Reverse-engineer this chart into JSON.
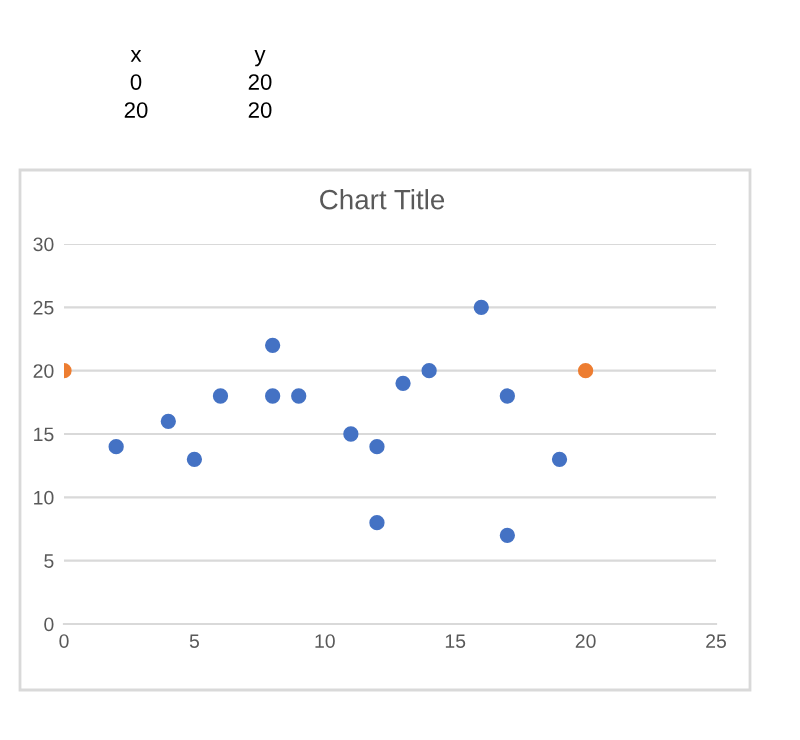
{
  "chart_data": {
    "type": "scatter",
    "title": "Chart Title",
    "annotations": [
      "x",
      "y",
      "0",
      "20",
      "20",
      "20"
    ],
    "series": [
      {
        "color": "#4472c4",
        "x": [
          2,
          4,
          5,
          6,
          8,
          8,
          9,
          11,
          12,
          12,
          13,
          14,
          16,
          17,
          17,
          19
        ],
        "values": [
          14,
          16,
          13,
          18,
          22,
          18,
          18,
          15,
          14,
          8,
          19,
          20,
          25,
          18,
          7,
          13
        ]
      },
      {
        "color": "#ed7d31",
        "x": [
          0,
          20
        ],
        "values": [
          20,
          20
        ]
      }
    ],
    "xlim": [
      0,
      25
    ],
    "xticks": [
      0,
      5,
      10,
      15,
      20,
      25
    ],
    "ylim": [
      0,
      30
    ],
    "yticks": [
      0,
      5,
      10,
      15,
      20,
      25,
      30
    ],
    "grid": "y",
    "marker": "circle",
    "legend": false
  }
}
